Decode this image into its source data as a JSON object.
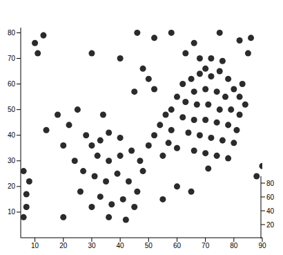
{
  "chart_data": {
    "type": "scatter",
    "color": "#2b2b2b",
    "marker": "circle",
    "grid": false,
    "x": [
      62,
      65,
      68,
      70,
      72,
      75,
      78,
      80,
      82,
      66,
      70,
      74,
      77,
      63,
      67,
      71,
      75,
      79,
      82,
      62,
      66,
      70,
      74,
      78,
      81,
      64,
      68,
      72,
      76,
      80,
      66,
      70,
      74,
      78,
      71,
      60,
      58,
      84,
      83,
      76,
      72,
      68,
      56,
      54,
      58,
      52,
      57,
      60,
      50,
      55,
      48,
      50,
      45,
      52,
      63,
      66,
      82,
      86,
      40,
      30,
      28,
      30,
      33,
      36,
      40,
      32,
      36,
      40,
      44,
      47,
      27,
      31,
      35,
      39,
      43,
      46,
      33,
      37,
      41,
      45,
      30,
      36,
      42,
      48,
      26,
      24,
      20,
      22,
      25,
      18,
      14,
      6,
      7,
      7,
      8,
      6,
      10,
      11,
      13,
      20,
      34,
      55,
      60,
      65,
      88,
      90,
      52,
      58,
      46,
      75,
      85
    ],
    "values": [
      60,
      62,
      64,
      66,
      63,
      65,
      62,
      58,
      55,
      57,
      58,
      57,
      55,
      53,
      52,
      52,
      50,
      50,
      48,
      47,
      46,
      46,
      45,
      44,
      42,
      41,
      40,
      39,
      38,
      37,
      34,
      33,
      32,
      31,
      27,
      55,
      50,
      52,
      60,
      69,
      70,
      70,
      48,
      44,
      42,
      40,
      37,
      35,
      36,
      32,
      66,
      62,
      57,
      58,
      72,
      76,
      77,
      78,
      70,
      72,
      40,
      36,
      38,
      41,
      39,
      32,
      30,
      32,
      34,
      30,
      26,
      24,
      22,
      25,
      22,
      18,
      16,
      13,
      15,
      12,
      12,
      8,
      7,
      26,
      18,
      30,
      36,
      44,
      50,
      48,
      42,
      8,
      12,
      17,
      22,
      26,
      76,
      72,
      79,
      8,
      48,
      15,
      20,
      18,
      24,
      28,
      78,
      80,
      80,
      80,
      72
    ],
    "xlim": [
      5,
      90
    ],
    "xticks": [
      10,
      20,
      30,
      40,
      50,
      60,
      70,
      80,
      90
    ],
    "ylim": [
      0,
      82
    ],
    "yticks": [
      10,
      20,
      30,
      40,
      50,
      60,
      70,
      80
    ],
    "zlim": [
      0,
      90
    ],
    "zticks": [
      20,
      40,
      60,
      80
    ]
  }
}
